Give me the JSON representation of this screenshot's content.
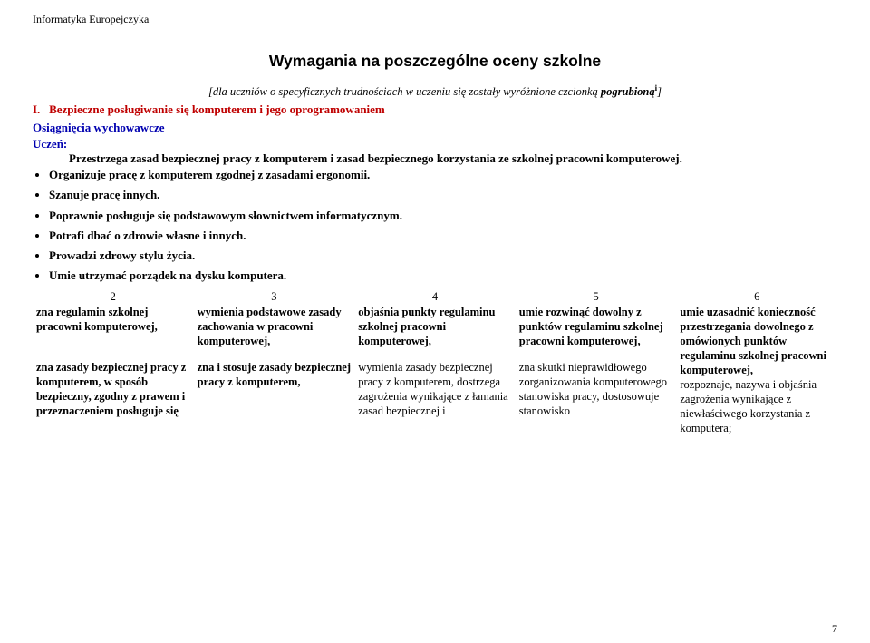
{
  "header": "Informatyka Europejczyka",
  "title": "Wymagania na poszczególne oceny szkolne",
  "subtitle_pre": "[dla uczniów o ",
  "subtitle_em": "specyficznych trudnościach w uczeniu się",
  "subtitle_post1": " zostały wyróżnione czcionką ",
  "subtitle_post2": "pogrubioną",
  "subtitle_post3": "]",
  "section_number": "I.",
  "section_title": "Bezpieczne posługiwanie się komputerem i jego oprogramowaniem",
  "osiagniecia": "Osiągnięcia wychowawcze",
  "uczen": "Uczeń:",
  "indent_line": "Przestrzega zasad bezpiecznej pracy z komputerem i zasad bezpiecznego korzystania ze szkolnej pracowni komputerowej.",
  "bullets": [
    "Organizuje pracę z komputerem zgodnej z zasadami ergonomii.",
    "Szanuje pracę innych.",
    "Poprawnie posługuje się podstawowym słownictwem informatycznym.",
    "Potrafi dbać o zdrowie własne i innych.",
    "Prowadzi zdrowy stylu życia.",
    "Umie utrzymać porządek na dysku komputera."
  ],
  "grades": [
    "2",
    "3",
    "4",
    "5",
    "6"
  ],
  "row1": [
    "zna regulamin szkolnej pracowni komputerowej,",
    "wymienia podstawowe zasady zachowania w pracowni komputerowej,",
    "objaśnia punkty regulaminu szkolnej pracowni komputerowej,",
    "umie rozwinąć dowolny z punktów regulaminu szkolnej pracowni komputerowej,",
    "umie uzasadnić konieczność przestrzegania dowolnego z omówionych punktów regulaminu szkolnej pracowni komputerowej,"
  ],
  "row2": [
    "zna zasady bezpiecznej pracy z komputerem, w sposób bezpieczny, zgodny z prawem i przeznaczeniem posługuje się",
    "zna i stosuje zasady bezpiecznej pracy z komputerem,",
    "wymienia zasady bezpiecznej pracy z komputerem, dostrzega zagrożenia wynikające z łamania zasad bezpiecznej i",
    "zna skutki nieprawidłowego zorganizowania komputerowego stanowiska pracy, dostosowuje stanowisko",
    "rozpoznaje, nazywa i objaśnia zagrożenia wynikające z niewłaściwego korzystania z komputera;"
  ],
  "pagenum": "7",
  "colors": {
    "red": "#bf0000",
    "blue": "#0000b0",
    "text": "#000000",
    "bg": "#ffffff"
  },
  "fontsizes": {
    "header": 12,
    "title": 17.5,
    "body": 13,
    "table": 12.5
  }
}
